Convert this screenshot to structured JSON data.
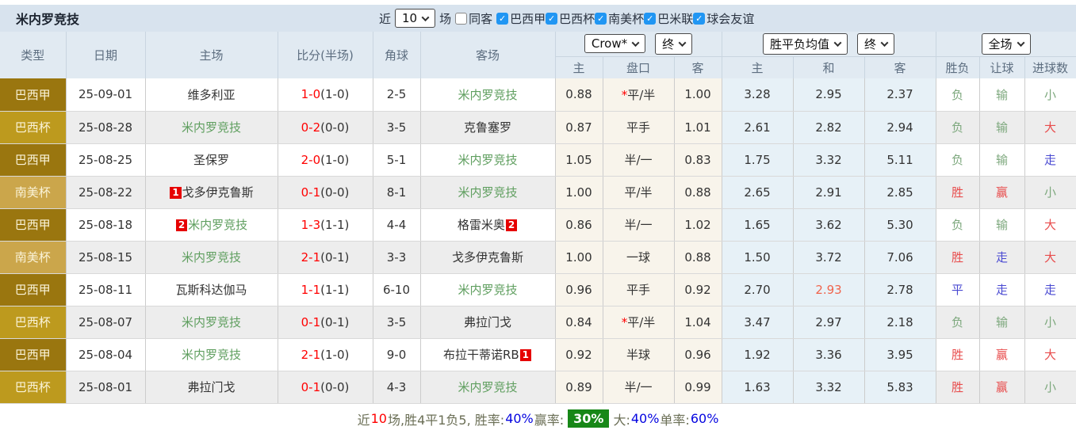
{
  "title": "米内罗竞技",
  "topbar": {
    "recent_label": "近",
    "recent_select_value": "10",
    "matches_label": "场",
    "same_venue_filter": {
      "label": "同客",
      "checked": false
    },
    "league_filters": [
      {
        "label": "巴西甲",
        "checked": true
      },
      {
        "label": "巴西杯",
        "checked": true
      },
      {
        "label": "南美杯",
        "checked": true
      },
      {
        "label": "巴米联",
        "checked": true
      },
      {
        "label": "球会友谊",
        "checked": true
      }
    ]
  },
  "selects": {
    "bookmaker": "Crow*",
    "bookmaker_time": "终",
    "europe_odds": "胜平负均值",
    "europe_time": "终",
    "scope": "全场"
  },
  "table": {
    "main_headers": [
      "类型",
      "日期",
      "主场",
      "比分(半场)",
      "角球",
      "客场"
    ],
    "sub_headers": [
      "主",
      "盘口",
      "客",
      "主",
      "和",
      "客",
      "胜负",
      "让球",
      "进球数"
    ],
    "rows": [
      {
        "league": "巴西甲",
        "league_class": "lg-a",
        "date": "25-09-01",
        "home": {
          "name": "维多利亚",
          "subject": false
        },
        "score_ft": "1-0",
        "score_ht": "(1-0)",
        "corners": "2-5",
        "away": {
          "name": "米内罗竞技",
          "subject": true
        },
        "ah_home": "0.88",
        "ah_star": true,
        "ah_line": "平/半",
        "ah_away": "1.00",
        "eu_home": "3.28",
        "eu_draw": "2.95",
        "eu_away": "2.37",
        "eu_draw_hl": false,
        "res_wdl": {
          "text": "负",
          "cls": "res-green"
        },
        "res_ah": {
          "text": "输",
          "cls": "res-green"
        },
        "res_goals": {
          "text": "小",
          "cls": "res-green"
        }
      },
      {
        "league": "巴西杯",
        "league_class": "lg-b",
        "date": "25-08-28",
        "home": {
          "name": "米内罗竞技",
          "subject": true
        },
        "score_ft": "0-2",
        "score_ht": "(0-0)",
        "corners": "3-5",
        "away": {
          "name": "克鲁塞罗",
          "subject": false
        },
        "ah_home": "0.87",
        "ah_star": false,
        "ah_line": "平手",
        "ah_away": "1.01",
        "eu_home": "2.61",
        "eu_draw": "2.82",
        "eu_away": "2.94",
        "eu_draw_hl": false,
        "res_wdl": {
          "text": "负",
          "cls": "res-green"
        },
        "res_ah": {
          "text": "输",
          "cls": "res-green"
        },
        "res_goals": {
          "text": "大",
          "cls": "res-red"
        }
      },
      {
        "league": "巴西甲",
        "league_class": "lg-a",
        "date": "25-08-25",
        "home": {
          "name": "圣保罗",
          "subject": false
        },
        "score_ft": "2-0",
        "score_ht": "(1-0)",
        "corners": "5-1",
        "away": {
          "name": "米内罗竞技",
          "subject": true
        },
        "ah_home": "1.05",
        "ah_star": false,
        "ah_line": "半/一",
        "ah_away": "0.83",
        "eu_home": "1.75",
        "eu_draw": "3.32",
        "eu_away": "5.11",
        "eu_draw_hl": false,
        "res_wdl": {
          "text": "负",
          "cls": "res-green"
        },
        "res_ah": {
          "text": "输",
          "cls": "res-green"
        },
        "res_goals": {
          "text": "走",
          "cls": "res-blue"
        }
      },
      {
        "league": "南美杯",
        "league_class": "lg-c",
        "date": "25-08-22",
        "home": {
          "name": "戈多伊克鲁斯",
          "subject": false,
          "badge_pre": "1"
        },
        "score_ft": "0-1",
        "score_ht": "(0-0)",
        "corners": "8-1",
        "away": {
          "name": "米内罗竞技",
          "subject": true
        },
        "ah_home": "1.00",
        "ah_star": false,
        "ah_line": "平/半",
        "ah_away": "0.88",
        "eu_home": "2.65",
        "eu_draw": "2.91",
        "eu_away": "2.85",
        "eu_draw_hl": false,
        "res_wdl": {
          "text": "胜",
          "cls": "res-red"
        },
        "res_ah": {
          "text": "赢",
          "cls": "res-red"
        },
        "res_goals": {
          "text": "小",
          "cls": "res-green"
        }
      },
      {
        "league": "巴西甲",
        "league_class": "lg-a",
        "date": "25-08-18",
        "home": {
          "name": "米内罗竞技",
          "subject": true,
          "badge_pre": "2"
        },
        "score_ft": "1-3",
        "score_ht": "(1-1)",
        "corners": "4-4",
        "away": {
          "name": "格雷米奥",
          "subject": false,
          "badge_post": "2"
        },
        "ah_home": "0.86",
        "ah_star": false,
        "ah_line": "半/一",
        "ah_away": "1.02",
        "eu_home": "1.65",
        "eu_draw": "3.62",
        "eu_away": "5.30",
        "eu_draw_hl": false,
        "res_wdl": {
          "text": "负",
          "cls": "res-green"
        },
        "res_ah": {
          "text": "输",
          "cls": "res-green"
        },
        "res_goals": {
          "text": "大",
          "cls": "res-red"
        }
      },
      {
        "league": "南美杯",
        "league_class": "lg-c",
        "date": "25-08-15",
        "home": {
          "name": "米内罗竞技",
          "subject": true
        },
        "score_ft": "2-1",
        "score_ht": "(0-1)",
        "corners": "3-3",
        "away": {
          "name": "戈多伊克鲁斯",
          "subject": false
        },
        "ah_home": "1.00",
        "ah_star": false,
        "ah_line": "一球",
        "ah_away": "0.88",
        "eu_home": "1.50",
        "eu_draw": "3.72",
        "eu_away": "7.06",
        "eu_draw_hl": false,
        "res_wdl": {
          "text": "胜",
          "cls": "res-red"
        },
        "res_ah": {
          "text": "走",
          "cls": "res-blue"
        },
        "res_goals": {
          "text": "大",
          "cls": "res-red"
        }
      },
      {
        "league": "巴西甲",
        "league_class": "lg-a",
        "date": "25-08-11",
        "home": {
          "name": "瓦斯科达伽马",
          "subject": false
        },
        "score_ft": "1-1",
        "score_ht": "(1-1)",
        "corners": "6-10",
        "away": {
          "name": "米内罗竞技",
          "subject": true
        },
        "ah_home": "0.96",
        "ah_star": false,
        "ah_line": "平手",
        "ah_away": "0.92",
        "eu_home": "2.70",
        "eu_draw": "2.93",
        "eu_away": "2.78",
        "eu_draw_hl": true,
        "res_wdl": {
          "text": "平",
          "cls": "res-blue"
        },
        "res_ah": {
          "text": "走",
          "cls": "res-blue"
        },
        "res_goals": {
          "text": "走",
          "cls": "res-blue"
        }
      },
      {
        "league": "巴西杯",
        "league_class": "lg-b",
        "date": "25-08-07",
        "home": {
          "name": "米内罗竞技",
          "subject": true
        },
        "score_ft": "0-1",
        "score_ht": "(0-1)",
        "corners": "3-5",
        "away": {
          "name": "弗拉门戈",
          "subject": false
        },
        "ah_home": "0.84",
        "ah_star": true,
        "ah_line": "平/半",
        "ah_away": "1.04",
        "eu_home": "3.47",
        "eu_draw": "2.97",
        "eu_away": "2.18",
        "eu_draw_hl": false,
        "res_wdl": {
          "text": "负",
          "cls": "res-green"
        },
        "res_ah": {
          "text": "输",
          "cls": "res-green"
        },
        "res_goals": {
          "text": "小",
          "cls": "res-green"
        }
      },
      {
        "league": "巴西甲",
        "league_class": "lg-a",
        "date": "25-08-04",
        "home": {
          "name": "米内罗竞技",
          "subject": true
        },
        "score_ft": "2-1",
        "score_ht": "(1-0)",
        "corners": "9-0",
        "away": {
          "name": "布拉干蒂诺RB",
          "subject": false,
          "badge_post": "1"
        },
        "ah_home": "0.92",
        "ah_star": false,
        "ah_line": "半球",
        "ah_away": "0.96",
        "eu_home": "1.92",
        "eu_draw": "3.36",
        "eu_away": "3.95",
        "eu_draw_hl": false,
        "res_wdl": {
          "text": "胜",
          "cls": "res-red"
        },
        "res_ah": {
          "text": "赢",
          "cls": "res-red"
        },
        "res_goals": {
          "text": "大",
          "cls": "res-red"
        }
      },
      {
        "league": "巴西杯",
        "league_class": "lg-b",
        "date": "25-08-01",
        "home": {
          "name": "弗拉门戈",
          "subject": false
        },
        "score_ft": "0-1",
        "score_ht": "(0-0)",
        "corners": "4-3",
        "away": {
          "name": "米内罗竞技",
          "subject": true
        },
        "ah_home": "0.89",
        "ah_star": false,
        "ah_line": "半/一",
        "ah_away": "0.99",
        "eu_home": "1.63",
        "eu_draw": "3.32",
        "eu_away": "5.83",
        "eu_draw_hl": false,
        "res_wdl": {
          "text": "胜",
          "cls": "res-red"
        },
        "res_ah": {
          "text": "赢",
          "cls": "res-red"
        },
        "res_goals": {
          "text": "小",
          "cls": "res-green"
        }
      }
    ]
  },
  "footer": {
    "segments": [
      {
        "text": "近",
        "cls": "f-olive"
      },
      {
        "text": "10",
        "cls": "f-red"
      },
      {
        "text": "场,胜4平1负5, 胜率:",
        "cls": "f-olive"
      },
      {
        "text": "40%",
        "cls": "f-blue"
      },
      {
        "text": " 赢率:",
        "cls": "f-olive"
      },
      {
        "text": "30%",
        "cls": "f-badge"
      },
      {
        "text": " 大:",
        "cls": "f-olive"
      },
      {
        "text": "40%",
        "cls": "f-blue"
      },
      {
        "text": " 单率:",
        "cls": "f-olive"
      },
      {
        "text": "60%",
        "cls": "f-blue"
      }
    ]
  },
  "colors": {
    "league_serie_a_bg": "#9a760f",
    "league_cup_bg": "#bd9a1e",
    "league_sudamericana_bg": "#cba64b",
    "subject_team_green": "#5e9e5e",
    "score_red": "#ff0000",
    "result_red": "#e84c4c",
    "result_green": "#7da87d",
    "result_blue": "#4a4ad2",
    "draw_highlight_orange": "#f0644c",
    "win_rate_badge_green": "#178717",
    "checkbox_blue": "#2196f3",
    "header_bg": "#e1eaf2",
    "topbar_bg": "#d8e3ee"
  }
}
